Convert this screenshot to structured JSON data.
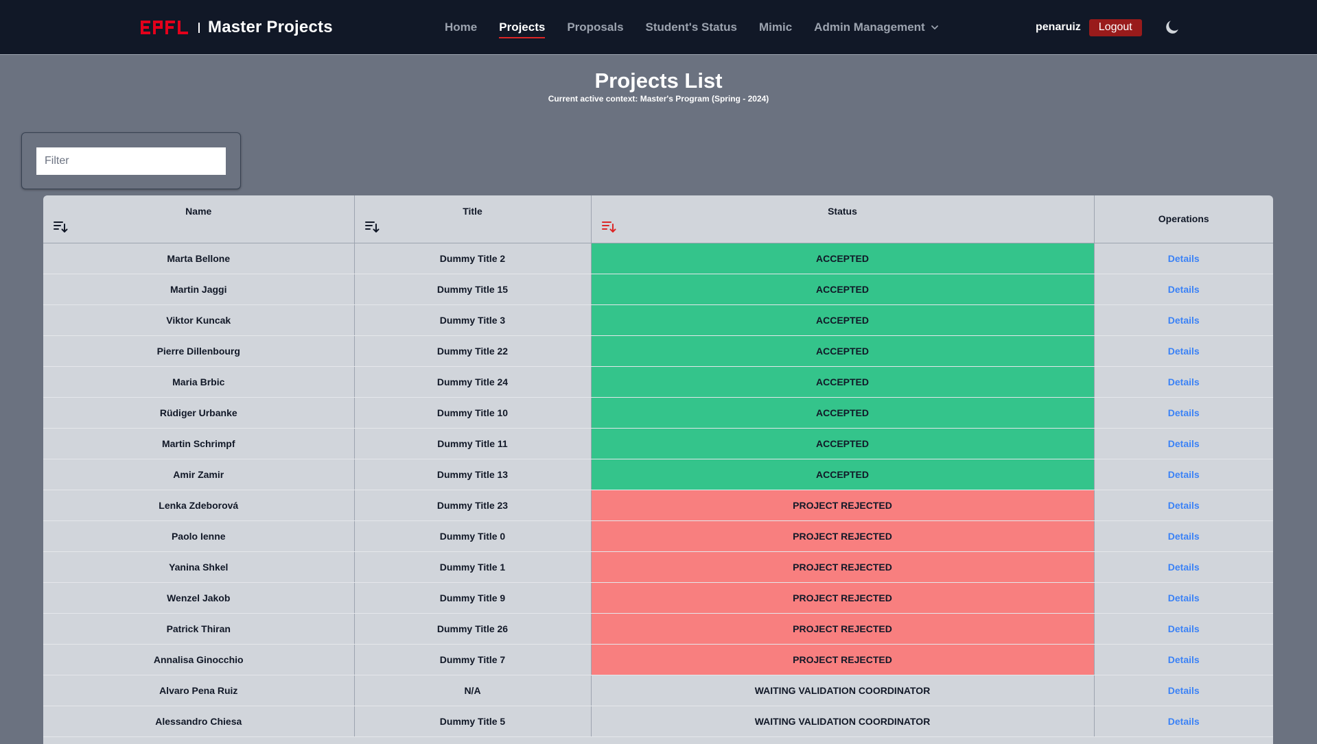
{
  "header": {
    "logo_text": "EPFL",
    "app_title": "Master Projects",
    "nav": [
      {
        "label": "Home",
        "active": false
      },
      {
        "label": "Projects",
        "active": true
      },
      {
        "label": "Proposals",
        "active": false
      },
      {
        "label": "Student's Status",
        "active": false
      },
      {
        "label": "Mimic",
        "active": false
      },
      {
        "label": "Admin Management",
        "active": false
      }
    ],
    "username": "penaruiz",
    "logout_label": "Logout",
    "theme_icon": "moon-icon"
  },
  "page": {
    "title": "Projects List",
    "subtitle": "Current active context: Master's Program (Spring - 2024)"
  },
  "filter": {
    "placeholder": "Filter",
    "value": ""
  },
  "table": {
    "columns": {
      "name": "Name",
      "title": "Title",
      "status": "Status",
      "operations": "Operations"
    },
    "active_sort_column": "status",
    "rows": [
      {
        "name": "Marta Bellone",
        "title": "Dummy Title 2",
        "status": "ACCEPTED",
        "status_type": "accepted",
        "action": "Details"
      },
      {
        "name": "Martin Jaggi",
        "title": "Dummy Title 15",
        "status": "ACCEPTED",
        "status_type": "accepted",
        "action": "Details"
      },
      {
        "name": "Viktor Kuncak",
        "title": "Dummy Title 3",
        "status": "ACCEPTED",
        "status_type": "accepted",
        "action": "Details"
      },
      {
        "name": "Pierre Dillenbourg",
        "title": "Dummy Title 22",
        "status": "ACCEPTED",
        "status_type": "accepted",
        "action": "Details"
      },
      {
        "name": "Maria Brbic",
        "title": "Dummy Title 24",
        "status": "ACCEPTED",
        "status_type": "accepted",
        "action": "Details"
      },
      {
        "name": "Rüdiger Urbanke",
        "title": "Dummy Title 10",
        "status": "ACCEPTED",
        "status_type": "accepted",
        "action": "Details"
      },
      {
        "name": "Martin Schrimpf",
        "title": "Dummy Title 11",
        "status": "ACCEPTED",
        "status_type": "accepted",
        "action": "Details"
      },
      {
        "name": "Amir Zamir",
        "title": "Dummy Title 13",
        "status": "ACCEPTED",
        "status_type": "accepted",
        "action": "Details"
      },
      {
        "name": "Lenka Zdeborová",
        "title": "Dummy Title 23",
        "status": "PROJECT REJECTED",
        "status_type": "rejected",
        "action": "Details"
      },
      {
        "name": "Paolo Ienne",
        "title": "Dummy Title 0",
        "status": "PROJECT REJECTED",
        "status_type": "rejected",
        "action": "Details"
      },
      {
        "name": "Yanina Shkel",
        "title": "Dummy Title 1",
        "status": "PROJECT REJECTED",
        "status_type": "rejected",
        "action": "Details"
      },
      {
        "name": "Wenzel Jakob",
        "title": "Dummy Title 9",
        "status": "PROJECT REJECTED",
        "status_type": "rejected",
        "action": "Details"
      },
      {
        "name": "Patrick Thiran",
        "title": "Dummy Title 26",
        "status": "PROJECT REJECTED",
        "status_type": "rejected",
        "action": "Details"
      },
      {
        "name": "Annalisa Ginocchio",
        "title": "Dummy Title 7",
        "status": "PROJECT REJECTED",
        "status_type": "rejected",
        "action": "Details"
      },
      {
        "name": "Alvaro Pena Ruiz",
        "title": "N/A",
        "status": "WAITING VALIDATION COORDINATOR",
        "status_type": "waiting",
        "action": "Details"
      },
      {
        "name": "Alessandro Chiesa",
        "title": "Dummy Title 5",
        "status": "WAITING VALIDATION COORDINATOR",
        "status_type": "waiting",
        "action": "Details"
      }
    ]
  },
  "colors": {
    "navbar_bg": "#111827",
    "page_bg": "#6b7280",
    "accent_red": "#dc2626",
    "accepted_bg": "#34c48b",
    "rejected_bg": "#f87f7f",
    "link_blue": "#3b82f6"
  }
}
